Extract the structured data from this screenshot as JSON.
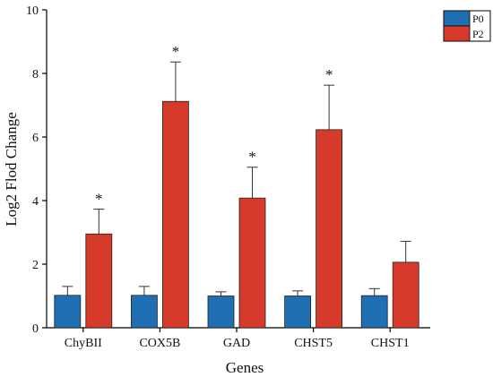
{
  "chart_data": {
    "type": "bar",
    "title": "",
    "xlabel": "Genes",
    "ylabel": "Log2 Flod Change",
    "categories": [
      "ChyBII",
      "COX5B",
      "GAD",
      "CHST5",
      "CHST1"
    ],
    "series": [
      {
        "name": "P0",
        "color": "#1f6fb2",
        "values": [
          1.02,
          1.02,
          1.0,
          1.0,
          1.01
        ],
        "errors": [
          0.28,
          0.28,
          0.13,
          0.16,
          0.22
        ]
      },
      {
        "name": "P2",
        "color": "#d63a2a",
        "values": [
          2.95,
          7.12,
          4.08,
          6.23,
          2.06
        ],
        "errors": [
          0.78,
          1.24,
          0.97,
          1.4,
          0.66
        ]
      }
    ],
    "significance": [
      "*",
      "*",
      "*",
      "*",
      ""
    ],
    "ylim": [
      0,
      10
    ],
    "yticks": [
      0,
      2,
      4,
      6,
      8,
      10
    ],
    "grid": false,
    "legend_position": "top-right"
  }
}
